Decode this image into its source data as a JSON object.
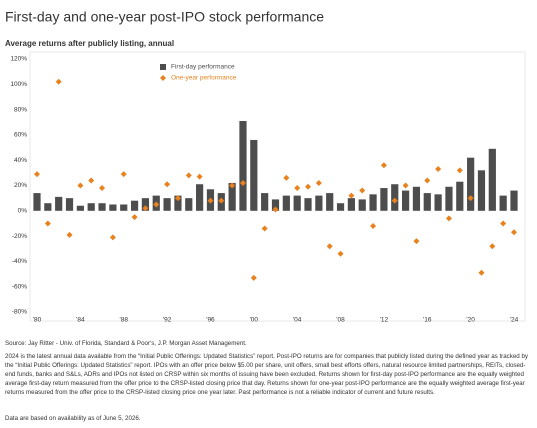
{
  "chart_data": {
    "type": "bar_scatter",
    "title": "First-day and one-year post-IPO stock performance",
    "subtitle": "Average returns after publicly listing, annual",
    "categories": [
      "'80",
      null,
      null,
      null,
      "'84",
      null,
      null,
      null,
      "'88",
      null,
      null,
      null,
      "'92",
      null,
      null,
      null,
      "'96",
      null,
      null,
      null,
      "'00",
      null,
      null,
      null,
      "'04",
      null,
      null,
      null,
      "'08",
      null,
      null,
      null,
      "'12",
      null,
      null,
      null,
      "'16",
      null,
      null,
      null,
      "'20",
      null,
      null,
      null,
      "'24"
    ],
    "series": [
      {
        "name": "First-day performance",
        "color": "#4d4d4d",
        "mark": "bar",
        "values": [
          14,
          6,
          11,
          10,
          4,
          6,
          6,
          5,
          5,
          8,
          10,
          12,
          10,
          12,
          10,
          21,
          17,
          14,
          22,
          71,
          56,
          14,
          9,
          12,
          12,
          10,
          12,
          14,
          6,
          10,
          9,
          13,
          18,
          21,
          16,
          19,
          14,
          13,
          19,
          23,
          42,
          32,
          49,
          12,
          16
        ]
      },
      {
        "name": "One-year performance",
        "color": "#e8821e",
        "mark": "diamond",
        "values": [
          29,
          -10,
          102,
          -19,
          20,
          24,
          18,
          -21,
          29,
          -5,
          2,
          5,
          21,
          10,
          28,
          27,
          8,
          8,
          20,
          22,
          -53,
          -14,
          1,
          26,
          18,
          19,
          22,
          -28,
          -34,
          12,
          16,
          -12,
          36,
          8,
          20,
          -24,
          24,
          33,
          -6,
          32,
          10,
          -49,
          -28,
          -10,
          -17
        ]
      }
    ],
    "ylim": [
      -80,
      120
    ],
    "yticks": [
      {
        "value": -80,
        "label": "-80%"
      },
      {
        "value": -60,
        "label": "-60%"
      },
      {
        "value": -40,
        "label": "-40%"
      },
      {
        "value": -20,
        "label": "-20%"
      },
      {
        "value": 0,
        "label": "0%"
      },
      {
        "value": 20,
        "label": "20%"
      },
      {
        "value": 40,
        "label": "40%"
      },
      {
        "value": 60,
        "label": "60%"
      },
      {
        "value": 80,
        "label": "80%"
      },
      {
        "value": 100,
        "label": "100%"
      },
      {
        "value": 120,
        "label": "120%"
      }
    ],
    "grid": false,
    "legend": "top-left",
    "source": "Source: Jay Ritter - Univ. of Florida, Standard & Poor's, J.P. Morgan Asset Management.",
    "footnote": "2024 is the latest annual data available from the “Initial Public Offerings: Updated Statistics” report. Post-IPO returns are for companies that publicly listed during the defined year as tracked by the “Initial Public Offerings: Updated Statistics” report. IPOs with an offer price below $5.00 per share, unit offers, small best efforts offers, natural resource limited partnerships, REITs, closed-end funds, banks and S&Ls, ADRs and IPOs not listed on CRSP within six months of issuing have been excluded. Returns shown for first-day post-IPO performance are the equally weighted average first-day return measured from the offer price to the CRSP-listed closing price that day. Returns shown for one-year post-IPO performance are the equally weighted average first-year returns measured from the offer price to the CRSP-listed closing price one year later. Past performance is not a reliable indicator of current and future results.",
    "data_note": "Data are based on availability as of June 5, 2026."
  }
}
